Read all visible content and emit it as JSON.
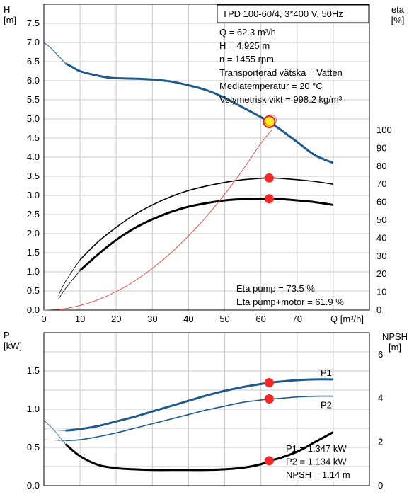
{
  "chart_data": [
    {
      "type": "line",
      "title": "TPD 100-60/4, 3*400 V, 50Hz",
      "xlabel": "Q [m³/h]",
      "ylabel_left": "H [m]",
      "ylabel_right": "eta [%]",
      "xlim": [
        0,
        90
      ],
      "ylim_left": [
        0,
        8
      ],
      "ylim_right_eta": [
        0,
        100
      ],
      "x_ticks": [
        "0",
        "10",
        "20",
        "30",
        "40",
        "50",
        "60",
        "70"
      ],
      "y_left_ticks": [
        "0.0",
        "0.5",
        "1.0",
        "1.5",
        "2.0",
        "2.5",
        "3.0",
        "3.5",
        "4.0",
        "4.5",
        "5.0",
        "5.5",
        "6.0",
        "6.5",
        "7.0",
        "7.5"
      ],
      "y_right_ticks": [
        "0",
        "10",
        "20",
        "30",
        "40",
        "50",
        "60",
        "70",
        "80",
        "90",
        "100"
      ],
      "grid": true,
      "info_lines": [
        "Q = 62.3 m³/h",
        "H = 4.925 m",
        "n = 1455 rpm",
        "Transporterad vätska = Vatten",
        "Mediatemperatur = 20 °C",
        "Volymetrisk vikt = 998.2 kg/m³"
      ],
      "eta_lines": [
        "Eta pump = 73.5 %",
        "Eta pump+motor = 61.9 %"
      ],
      "series": [
        {
          "key": "head",
          "axis": "left",
          "color": "#1f5a8c",
          "x": [
            0,
            2,
            4,
            6,
            8,
            10,
            14,
            18,
            22,
            26,
            30,
            35,
            40,
            45,
            50,
            55,
            60,
            62.3,
            65,
            70,
            75,
            80
          ],
          "y": [
            7.0,
            6.85,
            6.65,
            6.45,
            6.35,
            6.25,
            6.15,
            6.08,
            6.06,
            6.05,
            6.03,
            5.98,
            5.88,
            5.75,
            5.55,
            5.3,
            5.05,
            4.925,
            4.75,
            4.4,
            4.05,
            3.85
          ]
        },
        {
          "key": "eta_pump",
          "axis": "right",
          "color": "#000000",
          "x": [
            4,
            6,
            10,
            15,
            20,
            25,
            30,
            35,
            40,
            45,
            50,
            55,
            60,
            62.3,
            65,
            70,
            75,
            80
          ],
          "y": [
            8,
            16,
            28,
            38,
            46,
            53,
            58.5,
            63,
            66.5,
            69,
            71,
            72.5,
            73.3,
            73.5,
            73.3,
            72.5,
            71.5,
            70
          ]
        },
        {
          "key": "eta_pump_motor",
          "axis": "right",
          "color": "#000000",
          "x": [
            4,
            6,
            10,
            15,
            20,
            25,
            30,
            35,
            40,
            45,
            50,
            55,
            60,
            62.3,
            65,
            70,
            75,
            80
          ],
          "y": [
            6,
            12,
            22,
            31,
            39,
            45.5,
            50.5,
            54.5,
            57.5,
            59.5,
            61,
            61.7,
            61.9,
            61.9,
            61.8,
            61,
            60,
            58.5
          ]
        },
        {
          "key": "system_curve",
          "axis": "right",
          "color": "#e8433a",
          "x": [
            0,
            5,
            10,
            15,
            20,
            25,
            30,
            35,
            40,
            45,
            50,
            55,
            60,
            62.3,
            63
          ],
          "y": [
            0,
            0.6,
            2.6,
            5.8,
            10.3,
            16.1,
            23.2,
            31.6,
            41.3,
            52.2,
            64.5,
            78,
            92.8,
            98.5,
            100
          ]
        }
      ],
      "markers": [
        {
          "x": 62.3,
          "y": 4.925,
          "axis": "left",
          "style": "operating-point"
        },
        {
          "x": 62.3,
          "y": 73.5,
          "axis": "right",
          "style": "dot"
        },
        {
          "x": 62.3,
          "y": 61.9,
          "axis": "right",
          "style": "dot"
        }
      ]
    },
    {
      "type": "line",
      "xlim": [
        0,
        90
      ],
      "ylabel_left": "P [kW]",
      "ylabel_right": "NPSH [m]",
      "ylim_left": [
        0,
        2
      ],
      "ylim_right": [
        0,
        7
      ],
      "y_left_ticks": [
        "0.0",
        "0.5",
        "1.0",
        "1.5"
      ],
      "y_right_ticks": [
        "0",
        "2",
        "4",
        "6"
      ],
      "grid": true,
      "info_lines": [
        "P1 = 1.347 kW",
        "P2 = 1.134 kW",
        "NPSH = 1.14 m"
      ],
      "series": [
        {
          "key": "P1",
          "name": "P1",
          "axis": "left",
          "color": "#1f5a8c",
          "x": [
            0,
            6,
            10,
            15,
            20,
            25,
            30,
            35,
            40,
            45,
            50,
            55,
            60,
            62.3,
            65,
            70,
            75,
            80
          ],
          "y": [
            0.73,
            0.72,
            0.74,
            0.78,
            0.84,
            0.9,
            0.97,
            1.04,
            1.11,
            1.18,
            1.24,
            1.29,
            1.33,
            1.347,
            1.36,
            1.38,
            1.39,
            1.39
          ]
        },
        {
          "key": "P2",
          "name": "P2",
          "axis": "left",
          "color": "#1f5a8c",
          "x": [
            0,
            6,
            10,
            15,
            20,
            25,
            30,
            35,
            40,
            45,
            50,
            55,
            60,
            62.3,
            65,
            70,
            75,
            80
          ],
          "y": [
            0.6,
            0.59,
            0.6,
            0.64,
            0.69,
            0.75,
            0.81,
            0.87,
            0.93,
            0.99,
            1.04,
            1.09,
            1.12,
            1.134,
            1.14,
            1.16,
            1.17,
            1.17
          ]
        },
        {
          "key": "NPSH",
          "axis": "right",
          "color": "#000000",
          "x": [
            0,
            3,
            6,
            10,
            15,
            20,
            25,
            30,
            35,
            40,
            45,
            50,
            55,
            60,
            62.3,
            65,
            70,
            75,
            80
          ],
          "y": [
            3.0,
            2.5,
            1.9,
            1.35,
            0.95,
            0.8,
            0.75,
            0.72,
            0.72,
            0.72,
            0.72,
            0.75,
            0.82,
            0.98,
            1.14,
            1.25,
            1.55,
            2.0,
            2.45
          ]
        }
      ],
      "markers": [
        {
          "x": 62.3,
          "y": 1.347,
          "axis": "left",
          "style": "dot"
        },
        {
          "x": 62.3,
          "y": 1.134,
          "axis": "left",
          "style": "dot"
        },
        {
          "x": 62.3,
          "y": 1.14,
          "axis": "right",
          "style": "dot"
        }
      ]
    }
  ]
}
